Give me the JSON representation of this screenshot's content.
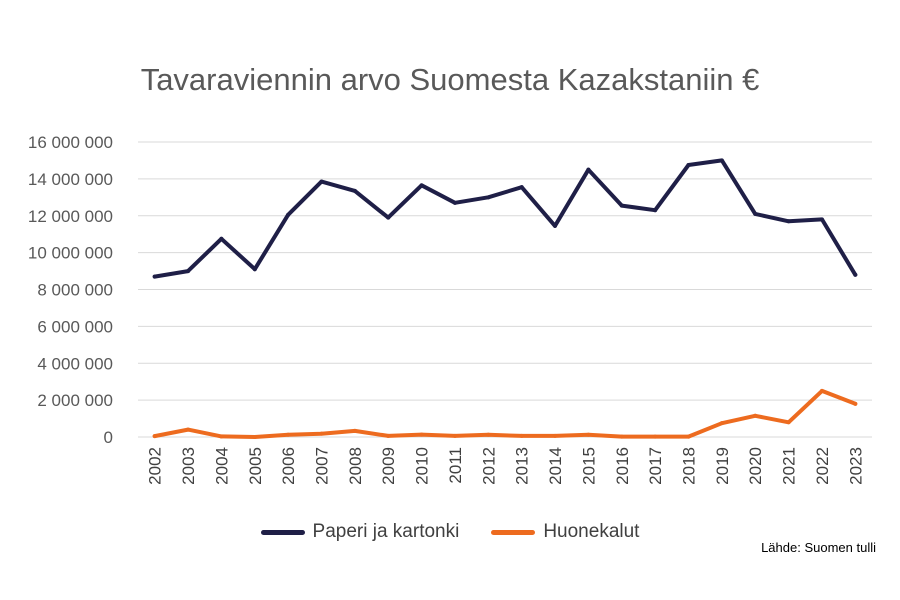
{
  "chart_data": {
    "type": "line",
    "title": "Tavaraviennin arvo Suomesta Kazakstaniin €",
    "source": "Lähde: Suomen tulli",
    "xlabel": "",
    "ylabel": "",
    "categories": [
      "2002",
      "2003",
      "2004",
      "2005",
      "2006",
      "2007",
      "2008",
      "2009",
      "2010",
      "2011",
      "2012",
      "2013",
      "2014",
      "2015",
      "2016",
      "2017",
      "2018",
      "2019",
      "2020",
      "2021",
      "2022",
      "2023"
    ],
    "ylim": [
      0,
      16000000
    ],
    "yticks": [
      0,
      2000000,
      4000000,
      6000000,
      8000000,
      10000000,
      12000000,
      14000000,
      16000000
    ],
    "ytick_labels": [
      "0",
      "2 000 000",
      "4 000 000",
      "6 000 000",
      "8 000 000",
      "10 000 000",
      "12 000 000",
      "14 000 000",
      "16 000 000"
    ],
    "grid": true,
    "legend_position": "bottom",
    "series": [
      {
        "name": "Paperi ja kartonki",
        "color": "#1f1f47",
        "values": [
          8700000,
          9000000,
          10750000,
          9100000,
          12050000,
          13850000,
          13350000,
          11900000,
          13650000,
          12700000,
          13000000,
          13550000,
          11450000,
          14500000,
          12550000,
          12300000,
          14750000,
          15000000,
          12100000,
          11700000,
          11800000,
          8800000
        ]
      },
      {
        "name": "Huonekalut",
        "color": "#ed6b1f",
        "values": [
          50000,
          400000,
          30000,
          0,
          120000,
          180000,
          330000,
          60000,
          130000,
          60000,
          120000,
          60000,
          60000,
          120000,
          20000,
          20000,
          20000,
          750000,
          1150000,
          800000,
          2500000,
          1800000
        ]
      }
    ]
  }
}
